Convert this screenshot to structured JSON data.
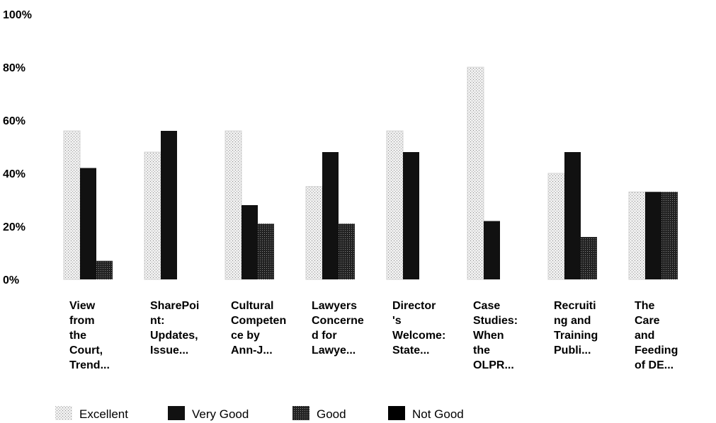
{
  "chart_data": {
    "type": "bar",
    "categories": [
      "View\nfrom\nthe\nCourt,\nTrend...",
      "SharePoi\nnt:\nUpdates,\nIssue...",
      "Cultural\nCompeten\nce by\nAnn-J...",
      "Lawyers\nConcerne\nd for\nLawye...",
      "Director\n's\nWelcome:\nState...",
      "Case\nStudies:\nWhen\nthe\nOLPR...",
      "Recruiti\nng and\nTraining\nPubli...",
      "The\nCare\nand\nFeeding\nof DE..."
    ],
    "series": [
      {
        "name": "Excellent",
        "color": "#d4d4d4",
        "values": [
          56,
          48,
          56,
          35,
          56,
          80,
          40,
          33
        ]
      },
      {
        "name": "Very Good",
        "color": "#111111",
        "values": [
          42,
          56,
          28,
          48,
          48,
          22,
          48,
          33
        ]
      },
      {
        "name": "Good",
        "color": "#3c3c3c",
        "values": [
          7,
          0,
          21,
          21,
          0,
          0,
          16,
          33
        ]
      },
      {
        "name": "Not Good",
        "color": "#000000",
        "values": [
          0,
          0,
          0,
          0,
          0,
          0,
          0,
          0
        ]
      }
    ],
    "ylim": [
      0,
      100
    ],
    "yticks": [
      {
        "value": 0,
        "label": "0%"
      },
      {
        "value": 20,
        "label": "20%"
      },
      {
        "value": 40,
        "label": "40%"
      },
      {
        "value": 60,
        "label": "60%"
      },
      {
        "value": 80,
        "label": "80%"
      },
      {
        "value": 100,
        "label": "100%"
      }
    ],
    "grid": false,
    "legend": "bottom"
  }
}
